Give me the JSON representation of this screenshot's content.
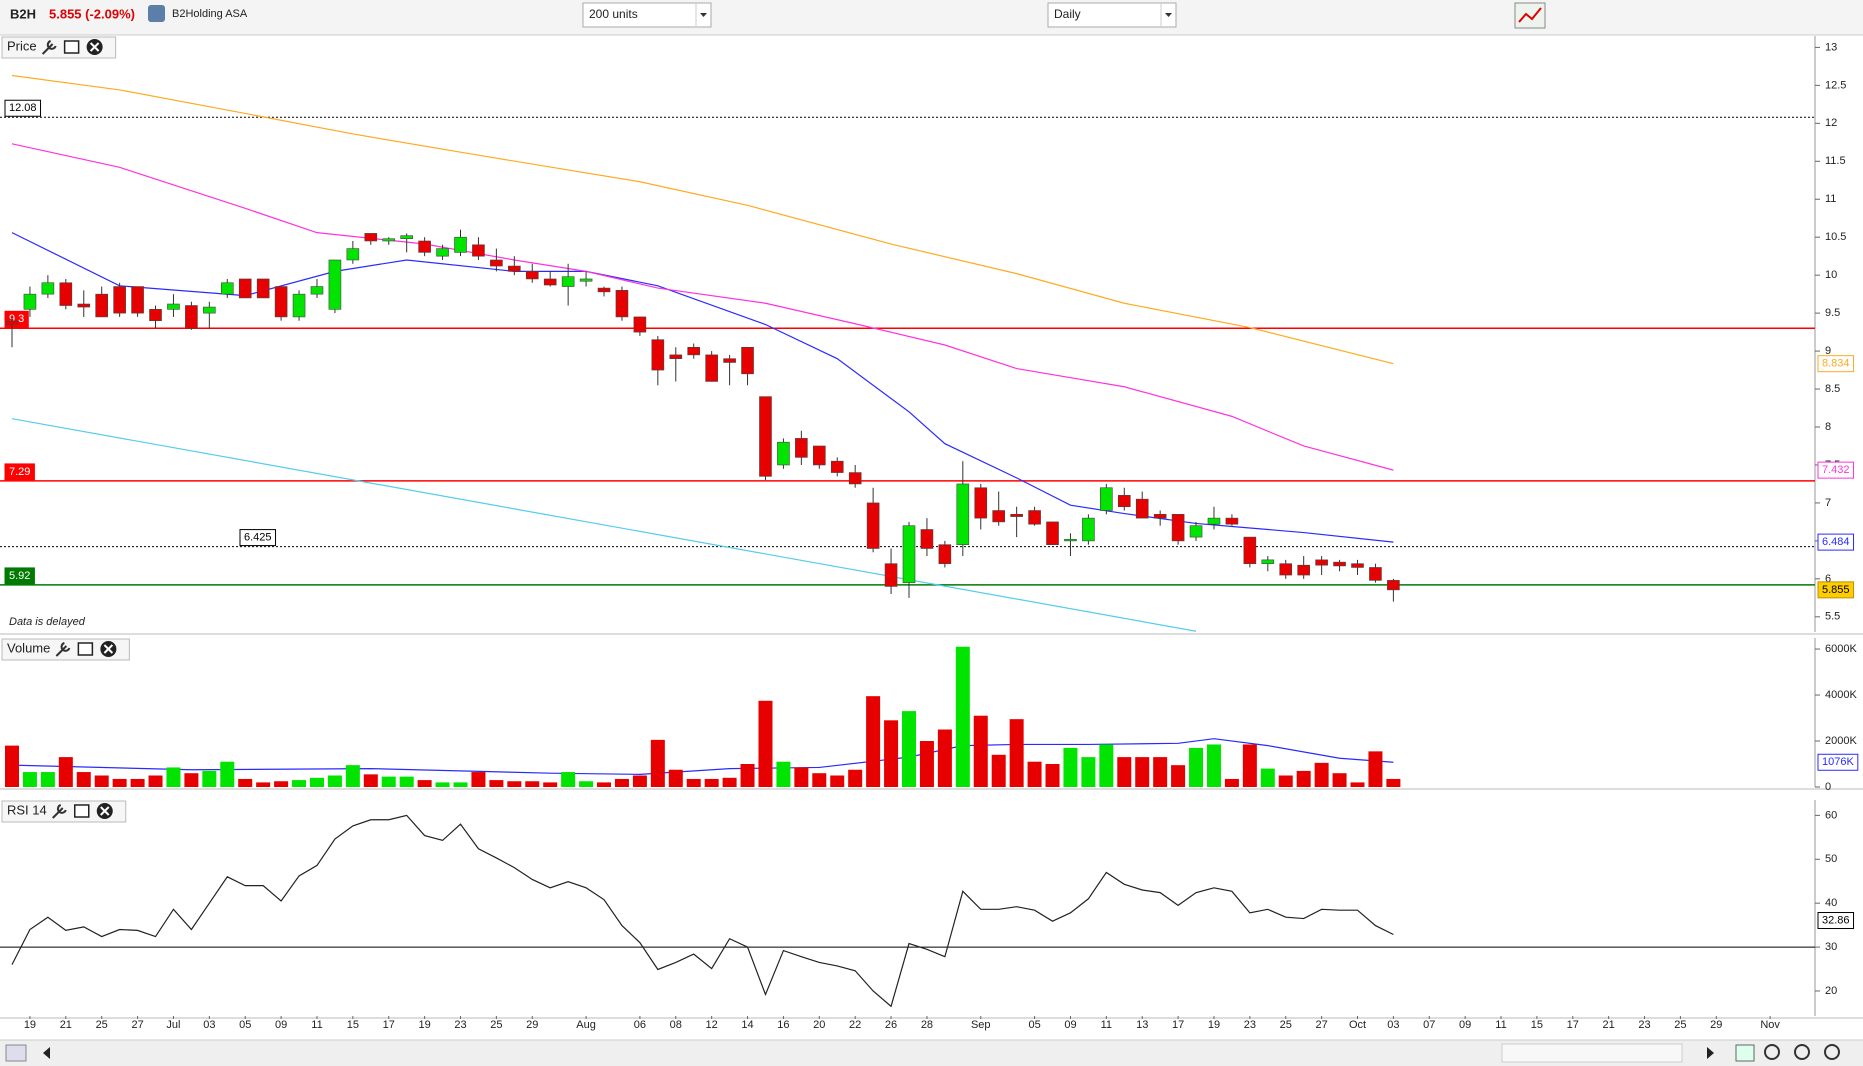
{
  "header": {
    "symbol": "B2H",
    "quote": "5.855 (-2.09%)",
    "company": "B2Holding ASA",
    "units": "200 units",
    "interval": "Daily"
  },
  "x_axis": {
    "categories": [
      null,
      "19",
      null,
      "21",
      null,
      "25",
      null,
      "27",
      null,
      "Jul",
      null,
      "03",
      null,
      "05",
      null,
      "09",
      null,
      "11",
      null,
      "15",
      null,
      "17",
      null,
      "19",
      null,
      "23",
      null,
      "25",
      null,
      "29",
      null,
      null,
      "Aug",
      null,
      null,
      "06",
      null,
      "08",
      null,
      "12",
      null,
      "14",
      null,
      "16",
      null,
      "20",
      null,
      "22",
      null,
      "26",
      null,
      "28",
      null,
      null,
      "Sep",
      null,
      null,
      "05",
      null,
      "09",
      null,
      "11",
      null,
      "13",
      null,
      "17",
      null,
      "19",
      null,
      "23",
      null,
      "25",
      null,
      "27",
      null,
      "Oct",
      null,
      "03",
      null,
      "07",
      null,
      "09",
      null,
      "11",
      null,
      "15",
      null,
      "17",
      null,
      "21",
      null,
      "23",
      null,
      "25",
      null,
      "29",
      null,
      null,
      "Nov"
    ]
  },
  "chart_data": [
    {
      "type": "candlestick",
      "title": "Price",
      "annotation": "Data is delayed",
      "up_color": "#00e400",
      "down_color": "#e60000",
      "ylim": [
        5.3,
        13.15
      ],
      "yticks": [
        5.5,
        6,
        6.5,
        7,
        7.5,
        8,
        8.5,
        9,
        9.5,
        10,
        10.5,
        11,
        11.5,
        12,
        12.5,
        13
      ],
      "open": [
        9.4,
        9.55,
        9.75,
        9.9,
        9.62,
        9.75,
        9.85,
        9.85,
        9.55,
        9.55,
        9.6,
        9.5,
        9.75,
        9.95,
        9.95,
        9.85,
        9.45,
        9.75,
        9.55,
        10.2,
        10.55,
        10.45,
        10.48,
        10.45,
        10.25,
        10.3,
        10.4,
        10.2,
        10.12,
        10.05,
        9.95,
        9.85,
        9.92,
        9.83,
        9.8,
        9.45,
        9.15,
        8.95,
        9.05,
        8.95,
        8.9,
        9.05,
        8.4,
        7.5,
        7.85,
        7.75,
        7.55,
        7.4,
        7.0,
        6.2,
        5.95,
        6.65,
        6.45,
        6.45,
        7.2,
        6.9,
        6.85,
        6.9,
        6.75,
        6.5,
        6.5,
        6.9,
        7.1,
        7.05,
        6.85,
        6.85,
        6.55,
        6.72,
        6.8,
        6.55,
        6.2,
        6.2,
        6.18,
        6.25,
        6.22,
        6.2,
        6.15,
        5.98,
        null,
        null,
        null,
        null,
        null,
        null,
        null,
        null,
        null,
        null,
        null,
        null,
        null,
        null,
        null,
        null,
        null,
        null,
        null,
        null,
        null
      ],
      "high": [
        9.45,
        9.85,
        10.0,
        9.95,
        9.8,
        9.85,
        9.9,
        9.85,
        9.6,
        9.75,
        9.65,
        9.65,
        9.95,
        9.95,
        9.95,
        9.85,
        9.8,
        9.95,
        10.2,
        10.45,
        10.55,
        10.5,
        10.55,
        10.5,
        10.4,
        10.6,
        10.5,
        10.35,
        10.25,
        10.15,
        10.05,
        10.15,
        10.05,
        9.85,
        9.85,
        9.45,
        9.2,
        9.05,
        9.1,
        9.0,
        8.95,
        9.05,
        8.4,
        7.85,
        7.95,
        7.75,
        7.6,
        7.5,
        7.2,
        6.4,
        6.75,
        6.8,
        6.5,
        7.55,
        7.25,
        7.15,
        6.95,
        6.95,
        6.75,
        6.6,
        6.85,
        7.25,
        7.2,
        7.15,
        6.9,
        6.85,
        6.75,
        6.95,
        6.85,
        6.55,
        6.3,
        6.25,
        6.3,
        6.3,
        6.25,
        6.25,
        6.2,
        6.0,
        null,
        null,
        null,
        null,
        null,
        null,
        null,
        null,
        null,
        null,
        null,
        null,
        null,
        null,
        null,
        null,
        null,
        null,
        null,
        null,
        null
      ],
      "low": [
        9.05,
        9.45,
        9.7,
        9.55,
        9.45,
        9.45,
        9.45,
        9.45,
        9.3,
        9.45,
        9.28,
        9.3,
        9.7,
        9.7,
        9.7,
        9.4,
        9.4,
        9.7,
        9.5,
        10.15,
        10.4,
        10.4,
        10.3,
        10.25,
        10.2,
        10.25,
        10.2,
        10.05,
        10.0,
        9.9,
        9.85,
        9.6,
        9.85,
        9.72,
        9.4,
        9.2,
        8.55,
        8.6,
        8.9,
        8.6,
        8.55,
        8.55,
        7.3,
        7.45,
        7.5,
        7.45,
        7.35,
        7.2,
        6.35,
        5.8,
        5.75,
        6.3,
        6.15,
        6.3,
        6.65,
        6.7,
        6.55,
        6.7,
        6.45,
        6.3,
        6.45,
        6.85,
        6.9,
        6.8,
        6.7,
        6.45,
        6.5,
        6.65,
        6.7,
        6.15,
        6.1,
        6.0,
        6.0,
        6.05,
        6.1,
        6.05,
        5.95,
        5.7,
        null,
        null,
        null,
        null,
        null,
        null,
        null,
        null,
        null,
        null,
        null,
        null,
        null,
        null,
        null,
        null,
        null,
        null,
        null,
        null,
        null
      ],
      "close": [
        9.35,
        9.75,
        9.9,
        9.6,
        9.58,
        9.45,
        9.5,
        9.5,
        9.4,
        9.62,
        9.3,
        9.58,
        9.9,
        9.7,
        9.7,
        9.45,
        9.75,
        9.85,
        10.2,
        10.35,
        10.45,
        10.48,
        10.52,
        10.3,
        10.35,
        10.5,
        10.25,
        10.12,
        10.05,
        9.95,
        9.87,
        9.98,
        9.95,
        9.78,
        9.45,
        9.25,
        8.75,
        8.9,
        8.95,
        8.6,
        8.85,
        8.7,
        7.35,
        7.8,
        7.6,
        7.5,
        7.4,
        7.25,
        6.4,
        5.9,
        6.7,
        6.4,
        6.2,
        7.25,
        6.8,
        6.75,
        6.82,
        6.72,
        6.45,
        6.52,
        6.8,
        7.2,
        6.95,
        6.8,
        6.8,
        6.5,
        6.7,
        6.8,
        6.72,
        6.2,
        6.25,
        6.05,
        6.05,
        6.18,
        6.17,
        6.15,
        5.98,
        5.855,
        null,
        null,
        null,
        null,
        null,
        null,
        null,
        null,
        null,
        null,
        null,
        null,
        null,
        null,
        null,
        null,
        null,
        null,
        null,
        null,
        null
      ],
      "lines": [
        {
          "color": "#2a2aff",
          "x": [
            0,
            6,
            13,
            18,
            22,
            28,
            32,
            36,
            42,
            46,
            50,
            52,
            56,
            59,
            62,
            66,
            69,
            72,
            77
          ],
          "values": [
            10.56,
            9.86,
            9.73,
            10.05,
            10.2,
            10.05,
            10.05,
            9.86,
            9.35,
            8.9,
            8.2,
            7.78,
            7.33,
            6.97,
            6.86,
            6.73,
            6.67,
            6.61,
            6.484
          ]
        },
        {
          "color": "#ff33dd",
          "x": [
            0,
            6,
            13,
            17,
            23,
            28,
            32,
            36,
            42,
            47,
            52,
            56,
            62,
            68,
            72,
            77
          ],
          "values": [
            11.73,
            11.42,
            10.88,
            10.56,
            10.41,
            10.2,
            10.05,
            9.83,
            9.63,
            9.36,
            9.08,
            8.77,
            8.53,
            8.14,
            7.75,
            7.432
          ]
        },
        {
          "color": "#ffaa22",
          "x": [
            0,
            6,
            13,
            19,
            26,
            35,
            41,
            49,
            56,
            62,
            69,
            77
          ],
          "values": [
            12.63,
            12.44,
            12.13,
            11.86,
            11.58,
            11.23,
            10.92,
            10.41,
            10.02,
            9.63,
            9.31,
            8.834
          ]
        },
        {
          "color": "#55ccee",
          "x": [
            0,
            66
          ],
          "values": [
            8.11,
            5.31
          ]
        }
      ],
      "levels": [
        {
          "value": 12.08,
          "color": "#000000",
          "dashed": true
        },
        {
          "value": 9.3,
          "color": "#ff0000",
          "dashed": false
        },
        {
          "value": 7.29,
          "color": "#ff0000",
          "dashed": false
        },
        {
          "value": 6.425,
          "color": "#000000",
          "dashed": true
        },
        {
          "value": 5.92,
          "color": "#007a00",
          "dashed": false
        }
      ]
    },
    {
      "type": "bar",
      "title": "Volume",
      "ylim": [
        0,
        6480
      ],
      "yticks": [
        {
          "value": 0,
          "label": "0"
        },
        {
          "value": 2000,
          "label": "2000K"
        },
        {
          "value": 4000,
          "label": "4000K"
        },
        {
          "value": 6000,
          "label": "6000K"
        }
      ],
      "values": [
        1800,
        650,
        650,
        1300,
        650,
        500,
        350,
        350,
        500,
        850,
        600,
        700,
        1100,
        350,
        200,
        250,
        300,
        400,
        500,
        950,
        550,
        450,
        450,
        300,
        200,
        200,
        650,
        300,
        250,
        250,
        200,
        650,
        250,
        200,
        350,
        500,
        2050,
        750,
        350,
        350,
        400,
        1000,
        3750,
        1100,
        850,
        600,
        500,
        750,
        3950,
        2900,
        3300,
        2000,
        2500,
        6100,
        3100,
        1400,
        2950,
        1100,
        1000,
        1700,
        1300,
        1850,
        1300,
        1300,
        1300,
        950,
        1700,
        1850,
        350,
        1850,
        800,
        500,
        700,
        1050,
        600,
        200,
        1550,
        350,
        null,
        null,
        null,
        null,
        null,
        null,
        null,
        null,
        null,
        null,
        null,
        null,
        null,
        null,
        null,
        null,
        null,
        null,
        null,
        null,
        null
      ],
      "lines": [
        {
          "color": "#2a2aff",
          "x": [
            0,
            10,
            20,
            30,
            35,
            40,
            45,
            50,
            53,
            56,
            60,
            65,
            67,
            70,
            74,
            77
          ],
          "values": [
            950,
            750,
            800,
            600,
            550,
            800,
            850,
            1300,
            1800,
            1850,
            1850,
            1900,
            2100,
            1800,
            1250,
            1076
          ],
          "end_label": "1076K"
        }
      ]
    },
    {
      "type": "line",
      "title": "RSI 14",
      "color": "#222222",
      "ylim": [
        14.3,
        63.5
      ],
      "yticks": [
        20,
        30,
        40,
        50,
        60
      ],
      "levels": [
        30
      ],
      "values": [
        26,
        34,
        36.8,
        33.8,
        34.6,
        32.4,
        34,
        33.8,
        32.4,
        38.6,
        34,
        40,
        46,
        44,
        44,
        40.5,
        46.2,
        48.6,
        54.6,
        57.6,
        59,
        59,
        60,
        55.4,
        54.3,
        58,
        52.4,
        50.3,
        48.1,
        45.4,
        43.5,
        44.9,
        43.5,
        40.8,
        34.9,
        31,
        24.9,
        26.5,
        28.4,
        25.1,
        31.9,
        30,
        19.2,
        29.2,
        27.8,
        26.5,
        25.7,
        24.6,
        20,
        16.5,
        30.8,
        29.5,
        27.8,
        42.7,
        38.6,
        38.6,
        39.2,
        38.4,
        35.9,
        37.8,
        41,
        47,
        44.3,
        43,
        42.4,
        39.5,
        42.4,
        43.5,
        42.7,
        37.8,
        38.6,
        36.8,
        36.5,
        38.6,
        38.4,
        38.4,
        34.9,
        32.86,
        null,
        null,
        null,
        null,
        null,
        null,
        null,
        null,
        null,
        null,
        null,
        null,
        null,
        null,
        null,
        null,
        null,
        null,
        null,
        null,
        null
      ]
    }
  ]
}
